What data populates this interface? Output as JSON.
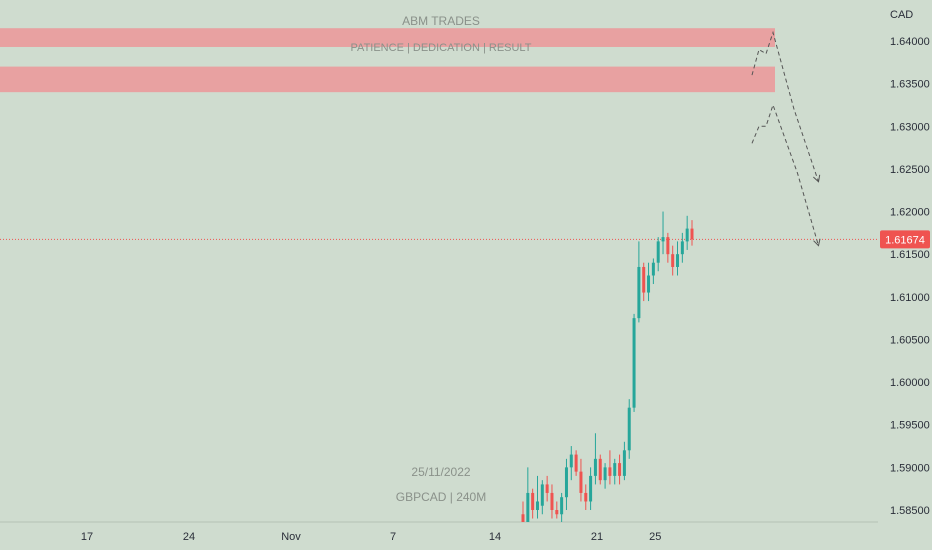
{
  "chart_data": {
    "type": "candlestick",
    "symbol": "GBPCAD",
    "timeframe": "240M",
    "date_label": "25/11/2022",
    "watermark_title": "ABM TRADES",
    "watermark_subtitle": "PATIENCE  |  DEDICATION  |  RESULT",
    "watermark_pair": "GBPCAD | 240M",
    "currency": "CAD",
    "current_price": 1.61674,
    "current_price_label": "1.61674",
    "ylim": [
      1.584,
      1.645
    ],
    "y_ticks": [
      {
        "value": 1.64,
        "label": "1.64000"
      },
      {
        "value": 1.635,
        "label": "1.63500"
      },
      {
        "value": 1.63,
        "label": "1.63000"
      },
      {
        "value": 1.625,
        "label": "1.62500"
      },
      {
        "value": 1.62,
        "label": "1.62000"
      },
      {
        "value": 1.615,
        "label": "1.61500"
      },
      {
        "value": 1.61,
        "label": "1.61000"
      },
      {
        "value": 1.605,
        "label": "1.60500"
      },
      {
        "value": 1.6,
        "label": "1.60000"
      },
      {
        "value": 1.595,
        "label": "1.59500"
      },
      {
        "value": 1.59,
        "label": "1.59000"
      },
      {
        "value": 1.585,
        "label": "1.58500"
      }
    ],
    "x_ticks": [
      {
        "day": 17,
        "label": "17"
      },
      {
        "day": 24,
        "label": "24"
      },
      {
        "day": 31,
        "label": "Nov"
      },
      {
        "day": 38,
        "label": "7"
      },
      {
        "day": 45,
        "label": "14"
      },
      {
        "day": 52,
        "label": "21"
      },
      {
        "day": 56,
        "label": "25"
      }
    ],
    "zones": [
      {
        "name": "supply-zone-upper",
        "y_top": 1.6415,
        "y_bottom": 1.6393,
        "color": "#e8a1a1"
      },
      {
        "name": "supply-zone-lower",
        "y_top": 1.637,
        "y_bottom": 1.634,
        "color": "#e8a1a1"
      }
    ],
    "projection_paths": [
      [
        [
          1.628,
          0
        ],
        [
          1.63,
          1
        ],
        [
          1.63,
          2
        ],
        [
          1.6325,
          3
        ],
        [
          1.6245,
          6.5
        ],
        [
          1.616,
          9.5
        ]
      ],
      [
        [
          1.636,
          0
        ],
        [
          1.639,
          1
        ],
        [
          1.6385,
          2
        ],
        [
          1.641,
          3
        ],
        [
          1.632,
          6
        ],
        [
          1.6235,
          9.5
        ]
      ]
    ],
    "colors": {
      "up": "#26a69a",
      "down": "#ef5350",
      "price_line": "#ef5350",
      "projection": "#555555"
    },
    "candles": [
      {
        "o": 1.5845,
        "h": 1.586,
        "l": 1.583,
        "c": 1.5835
      },
      {
        "o": 1.5835,
        "h": 1.59,
        "l": 1.583,
        "c": 1.587
      },
      {
        "o": 1.587,
        "h": 1.5875,
        "l": 1.584,
        "c": 1.585
      },
      {
        "o": 1.585,
        "h": 1.589,
        "l": 1.584,
        "c": 1.586
      },
      {
        "o": 1.5855,
        "h": 1.5885,
        "l": 1.5845,
        "c": 1.588
      },
      {
        "o": 1.588,
        "h": 1.589,
        "l": 1.586,
        "c": 1.587
      },
      {
        "o": 1.587,
        "h": 1.588,
        "l": 1.584,
        "c": 1.585
      },
      {
        "o": 1.585,
        "h": 1.586,
        "l": 1.584,
        "c": 1.5845
      },
      {
        "o": 1.5845,
        "h": 1.587,
        "l": 1.5835,
        "c": 1.5865
      },
      {
        "o": 1.5865,
        "h": 1.591,
        "l": 1.585,
        "c": 1.59
      },
      {
        "o": 1.59,
        "h": 1.5925,
        "l": 1.5885,
        "c": 1.5915
      },
      {
        "o": 1.5915,
        "h": 1.592,
        "l": 1.589,
        "c": 1.5895
      },
      {
        "o": 1.5895,
        "h": 1.591,
        "l": 1.586,
        "c": 1.587
      },
      {
        "o": 1.587,
        "h": 1.588,
        "l": 1.585,
        "c": 1.586
      },
      {
        "o": 1.586,
        "h": 1.59,
        "l": 1.585,
        "c": 1.589
      },
      {
        "o": 1.589,
        "h": 1.594,
        "l": 1.588,
        "c": 1.591
      },
      {
        "o": 1.591,
        "h": 1.5915,
        "l": 1.588,
        "c": 1.5885
      },
      {
        "o": 1.5885,
        "h": 1.5905,
        "l": 1.5875,
        "c": 1.59
      },
      {
        "o": 1.59,
        "h": 1.592,
        "l": 1.588,
        "c": 1.589
      },
      {
        "o": 1.589,
        "h": 1.591,
        "l": 1.588,
        "c": 1.5905
      },
      {
        "o": 1.5905,
        "h": 1.5915,
        "l": 1.588,
        "c": 1.589
      },
      {
        "o": 1.589,
        "h": 1.593,
        "l": 1.5885,
        "c": 1.592
      },
      {
        "o": 1.592,
        "h": 1.598,
        "l": 1.591,
        "c": 1.597
      },
      {
        "o": 1.597,
        "h": 1.608,
        "l": 1.5965,
        "c": 1.6075
      },
      {
        "o": 1.6075,
        "h": 1.6165,
        "l": 1.607,
        "c": 1.6135
      },
      {
        "o": 1.6135,
        "h": 1.614,
        "l": 1.6095,
        "c": 1.6105
      },
      {
        "o": 1.6105,
        "h": 1.614,
        "l": 1.6095,
        "c": 1.6125
      },
      {
        "o": 1.6125,
        "h": 1.6145,
        "l": 1.6115,
        "c": 1.614
      },
      {
        "o": 1.614,
        "h": 1.617,
        "l": 1.613,
        "c": 1.6165
      },
      {
        "o": 1.6165,
        "h": 1.62,
        "l": 1.615,
        "c": 1.617
      },
      {
        "o": 1.617,
        "h": 1.6175,
        "l": 1.614,
        "c": 1.615
      },
      {
        "o": 1.615,
        "h": 1.616,
        "l": 1.6125,
        "c": 1.6135
      },
      {
        "o": 1.6135,
        "h": 1.6165,
        "l": 1.6125,
        "c": 1.615
      },
      {
        "o": 1.615,
        "h": 1.6175,
        "l": 1.614,
        "c": 1.6165
      },
      {
        "o": 1.6165,
        "h": 1.6195,
        "l": 1.6155,
        "c": 1.618
      },
      {
        "o": 1.618,
        "h": 1.619,
        "l": 1.616,
        "c": 1.61674
      }
    ]
  }
}
